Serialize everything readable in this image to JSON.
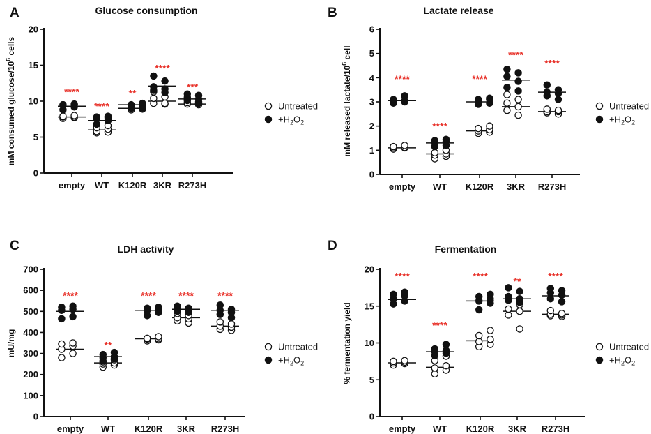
{
  "figure": {
    "legend": {
      "untreated": "Untreated",
      "treated_prefix": "+H",
      "treated_sub": "2",
      "treated_mid": "O",
      "treated_sub2": "2"
    },
    "significance_color": "#e8322a"
  },
  "chart_data": [
    {
      "panel": "A",
      "type": "scatter",
      "title": "Glucose consumption",
      "ylabel_main": "mM consumed glucose/10",
      "ylabel_sup": "6",
      "ylabel_tail": " cells",
      "categories": [
        "empty",
        "WT",
        "K120R",
        "3KR",
        "R273H"
      ],
      "ylim": [
        0,
        20
      ],
      "yticks": [
        0,
        5,
        10,
        15,
        20
      ],
      "significance": [
        "****",
        "****",
        "**",
        "****",
        "***"
      ],
      "sig_y": [
        11.3,
        9.3,
        11.1,
        14.6,
        12.0
      ],
      "series": [
        {
          "name": "Untreated",
          "filled": false,
          "means": [
            7.8,
            6.0,
            9.0,
            10.0,
            9.6
          ],
          "points": [
            [
              7.6,
              7.7,
              7.8,
              7.8,
              7.9,
              8.0
            ],
            [
              5.6,
              5.7,
              5.8,
              6.1,
              6.3,
              6.6
            ],
            [
              8.8,
              8.9,
              9.0,
              9.0,
              9.1,
              9.2
            ],
            [
              9.6,
              9.7,
              9.7,
              10.4,
              10.6,
              11.3
            ],
            [
              9.5,
              9.6,
              9.7,
              9.8,
              9.9,
              10.1
            ]
          ]
        },
        {
          "name": "+H2O2",
          "filled": true,
          "means": [
            9.3,
            7.3,
            9.5,
            12.1,
            10.3
          ],
          "points": [
            [
              8.8,
              9.2,
              9.5,
              9.5,
              9.5,
              9.6
            ],
            [
              6.8,
              7.3,
              7.6,
              7.7,
              7.8,
              7.9
            ],
            [
              9.0,
              9.1,
              9.2,
              9.3,
              9.5,
              9.7
            ],
            [
              11.2,
              11.5,
              11.7,
              12.0,
              12.8,
              13.5
            ],
            [
              9.7,
              10.2,
              10.3,
              10.5,
              10.8,
              11.0
            ]
          ]
        }
      ]
    },
    {
      "panel": "B",
      "type": "scatter",
      "title": "Lactate release",
      "ylabel_main": "mM released lactate/10",
      "ylabel_sup": "6",
      "ylabel_tail": " cell",
      "categories": [
        "empty",
        "WT",
        "K120R",
        "3KR",
        "R273H"
      ],
      "ylim": [
        0,
        6
      ],
      "yticks": [
        0,
        1,
        2,
        3,
        4,
        5,
        6
      ],
      "significance": [
        "****",
        "****",
        "****",
        "****",
        "****"
      ],
      "sig_y": [
        3.95,
        2.0,
        3.95,
        4.95,
        4.6
      ],
      "series": [
        {
          "name": "Untreated",
          "filled": false,
          "means": [
            1.1,
            0.85,
            1.8,
            2.8,
            2.6
          ],
          "points": [
            [
              1.05,
              1.1,
              1.1,
              1.12,
              1.15,
              1.2
            ],
            [
              0.65,
              0.75,
              0.8,
              0.85,
              0.9,
              1.0
            ],
            [
              1.7,
              1.75,
              1.8,
              1.85,
              1.9,
              2.0
            ],
            [
              2.45,
              2.65,
              2.8,
              2.95,
              3.1,
              3.3
            ],
            [
              2.5,
              2.55,
              2.6,
              2.6,
              2.65,
              2.7
            ]
          ]
        },
        {
          "name": "+H2O2",
          "filled": true,
          "means": [
            3.05,
            1.3,
            3.0,
            3.9,
            3.4
          ],
          "points": [
            [
              2.95,
              3.0,
              3.05,
              3.05,
              3.1,
              3.25
            ],
            [
              1.15,
              1.2,
              1.3,
              1.35,
              1.4,
              1.45
            ],
            [
              2.9,
              2.95,
              3.0,
              3.1,
              3.1,
              3.15
            ],
            [
              3.45,
              3.6,
              3.85,
              4.05,
              4.2,
              4.35
            ],
            [
              3.1,
              3.25,
              3.35,
              3.4,
              3.5,
              3.7
            ]
          ]
        }
      ]
    },
    {
      "panel": "C",
      "type": "scatter",
      "title": "LDH activity",
      "ylabel_main": "mU/mg",
      "ylabel_sup": "",
      "ylabel_tail": "",
      "categories": [
        "empty",
        "WT",
        "K120R",
        "3KR",
        "R273H"
      ],
      "ylim": [
        0,
        700
      ],
      "yticks": [
        0,
        100,
        200,
        300,
        400,
        500,
        600,
        700
      ],
      "significance": [
        "****",
        "**",
        "****",
        "****",
        "****"
      ],
      "sig_y": [
        575,
        340,
        575,
        575,
        575
      ],
      "series": [
        {
          "name": "Untreated",
          "filled": false,
          "means": [
            320,
            255,
            370,
            470,
            430
          ],
          "points": [
            [
              280,
              300,
              320,
              335,
              345,
              350
            ],
            [
              235,
              245,
              250,
              255,
              260,
              270
            ],
            [
              360,
              365,
              368,
              370,
              372,
              380
            ],
            [
              445,
              455,
              465,
              470,
              480,
              490
            ],
            [
              410,
              415,
              425,
              430,
              440,
              450
            ]
          ]
        },
        {
          "name": "+H2O2",
          "filled": true,
          "means": [
            500,
            285,
            505,
            510,
            505
          ],
          "points": [
            [
              465,
              475,
              505,
              510,
              520,
              525
            ],
            [
              265,
              275,
              280,
              285,
              295,
              305
            ],
            [
              480,
              495,
              505,
              510,
              515,
              520
            ],
            [
              495,
              500,
              505,
              510,
              515,
              525
            ],
            [
              470,
              485,
              495,
              505,
              510,
              530
            ]
          ]
        }
      ]
    },
    {
      "panel": "D",
      "type": "scatter",
      "title": "Fermentation",
      "ylabel_main": "% fermentation yield",
      "ylabel_sup": "",
      "ylabel_tail": "",
      "categories": [
        "empty",
        "WT",
        "K120R",
        "3KR",
        "R273H"
      ],
      "ylim": [
        0,
        20
      ],
      "yticks": [
        0,
        5,
        10,
        15,
        20
      ],
      "significance": [
        "****",
        "****",
        "****",
        "**",
        "****"
      ],
      "sig_y": [
        19.1,
        12.4,
        19.1,
        18.4,
        19.1
      ],
      "series": [
        {
          "name": "Untreated",
          "filled": false,
          "means": [
            7.3,
            6.7,
            10.3,
            14.3,
            13.9
          ],
          "points": [
            [
              7.0,
              7.2,
              7.3,
              7.4,
              7.5,
              7.6
            ],
            [
              5.8,
              6.3,
              6.6,
              6.9,
              7.6,
              8.2
            ],
            [
              9.5,
              9.8,
              10.2,
              10.5,
              11.0,
              11.7
            ],
            [
              11.9,
              13.8,
              14.3,
              14.6,
              15.2,
              15.8
            ],
            [
              13.6,
              13.7,
              13.8,
              13.9,
              14.0,
              14.4
            ]
          ]
        },
        {
          "name": "+H2O2",
          "filled": true,
          "means": [
            15.9,
            8.8,
            15.7,
            16.0,
            16.4
          ],
          "points": [
            [
              15.3,
              15.7,
              16.0,
              16.4,
              16.6,
              16.9
            ],
            [
              8.3,
              8.6,
              8.8,
              9.0,
              9.2,
              9.8
            ],
            [
              14.5,
              15.4,
              15.7,
              16.0,
              16.3,
              16.6
            ],
            [
              15.5,
              15.8,
              16.0,
              16.3,
              17.0,
              17.5
            ],
            [
              15.6,
              16.0,
              16.5,
              16.8,
              17.1,
              17.4
            ]
          ]
        }
      ]
    }
  ]
}
